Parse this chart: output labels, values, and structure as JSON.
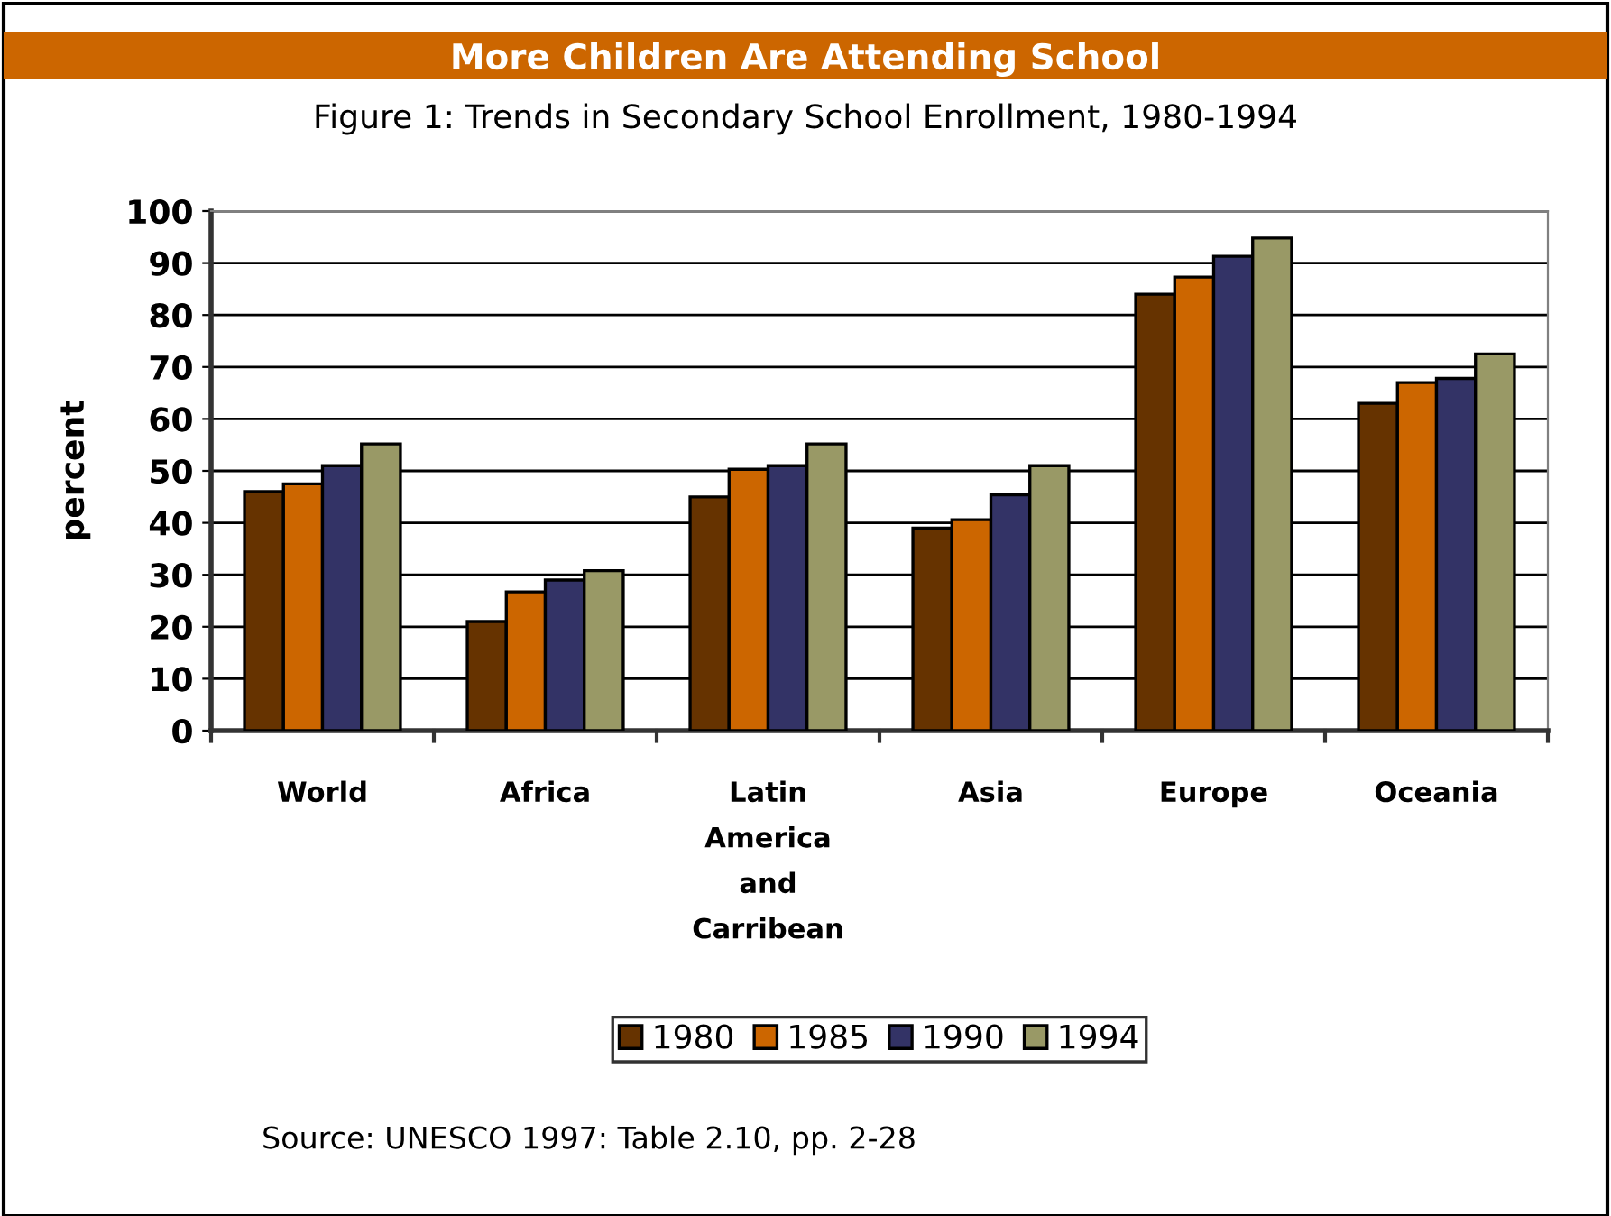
{
  "chart_data": {
    "type": "bar",
    "title": "More Children Are Attending School",
    "subtitle": "Figure 1: Trends in Secondary School Enrollment, 1980-1994",
    "ylabel": "percent",
    "categories": [
      "World",
      "Africa",
      "Latin America and Carribean",
      "Asia",
      "Europe",
      "Oceania"
    ],
    "series": [
      {
        "name": "1980",
        "color": "#663300",
        "values": [
          46,
          21,
          45,
          39,
          84,
          63
        ]
      },
      {
        "name": "1985",
        "color": "#cc6600",
        "values": [
          47.5,
          26.7,
          50.3,
          40.6,
          87.3,
          67
        ]
      },
      {
        "name": "1990",
        "color": "#333366",
        "values": [
          51,
          29,
          51,
          45.4,
          91.3,
          67.8
        ]
      },
      {
        "name": "1994",
        "color": "#999966",
        "values": [
          55.2,
          30.8,
          55.2,
          51,
          94.8,
          72.5
        ]
      }
    ],
    "ylim": [
      0,
      100
    ],
    "yticks": [
      0,
      10,
      20,
      30,
      40,
      50,
      60,
      70,
      80,
      90,
      100
    ],
    "grid": "y",
    "legend": "bottom",
    "annotations": [
      "Source: UNESCO 1997: Table 2.10, pp. 2-28"
    ]
  }
}
